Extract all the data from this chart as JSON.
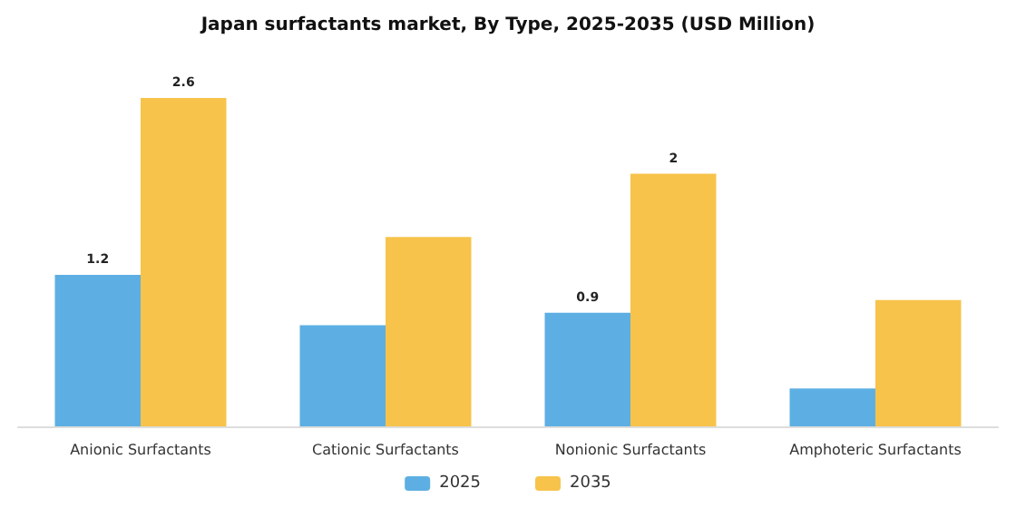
{
  "chart_data": {
    "type": "bar",
    "title": "Japan surfactants market, By Type, 2025-2035 (USD Million)",
    "categories": [
      "Anionic Surfactants",
      "Cationic Surfactants",
      "Nonionic Surfactants",
      "Amphoteric Surfactants"
    ],
    "series": [
      {
        "name": "2025",
        "color": "#5dafe3",
        "values": [
          1.2,
          0.8,
          0.9,
          0.3
        ],
        "value_labels": [
          "1.2",
          null,
          "0.9",
          null
        ]
      },
      {
        "name": "2035",
        "color": "#f7c34b",
        "values": [
          2.6,
          1.5,
          2,
          1.0
        ],
        "value_labels": [
          "2.6",
          null,
          "2",
          null
        ]
      }
    ],
    "legend": "bottom"
  }
}
